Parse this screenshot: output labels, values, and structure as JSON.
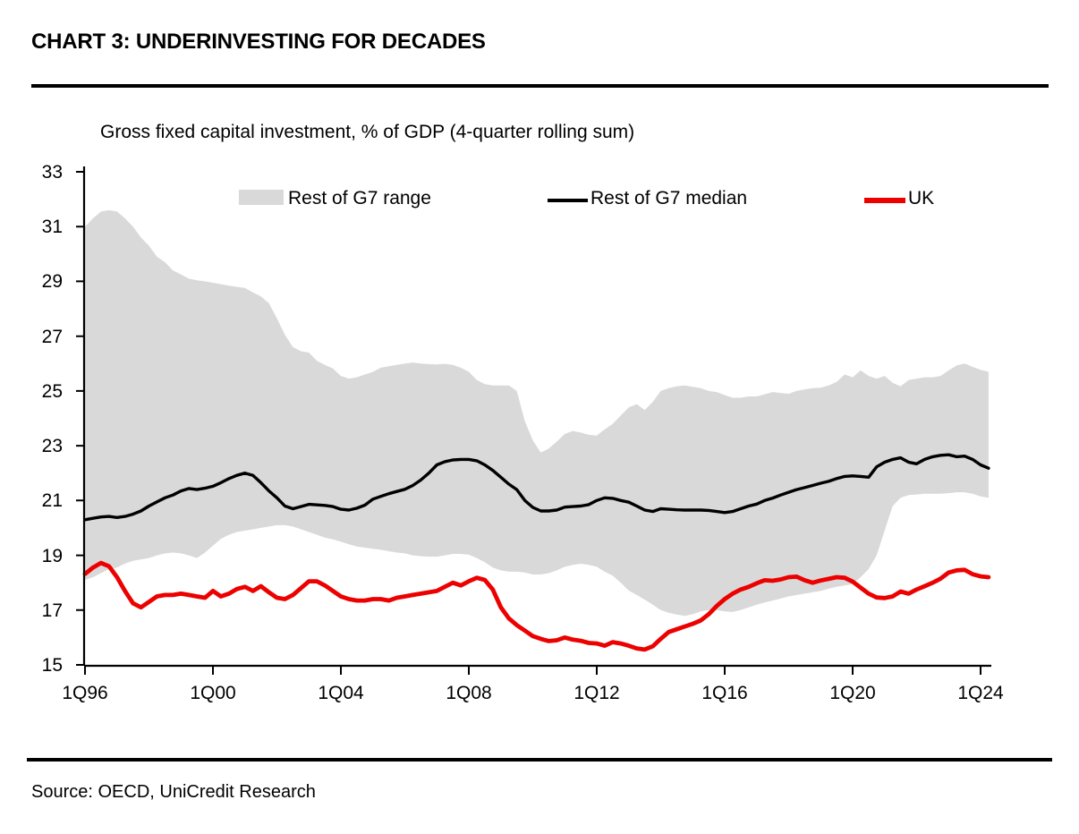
{
  "header": {
    "title": "CHART 3: UNDERINVESTING FOR DECADES"
  },
  "footer": {
    "source": "Source: OECD, UniCredit Research"
  },
  "chart_data": {
    "type": "area",
    "title": "Gross fixed capital investment, % of GDP (4-quarter rolling sum)",
    "xlabel": "",
    "ylabel": "",
    "ylim": [
      15,
      33
    ],
    "grid": false,
    "legend_position": "top",
    "x_frequency": "quarterly",
    "x_start": "1Q96",
    "x_end": "2Q24",
    "x_tick_labels": [
      "1Q96",
      "1Q00",
      "1Q04",
      "1Q08",
      "1Q12",
      "1Q16",
      "1Q20",
      "1Q24"
    ],
    "y_tick_labels": [
      "33",
      "31",
      "29",
      "27",
      "25",
      "23",
      "21",
      "19",
      "17",
      "15"
    ],
    "colors": {
      "band": "#d9d9d9",
      "median": "#000000",
      "uk": "#ec0000"
    },
    "legend": [
      {
        "label": "Rest of G7 range",
        "type": "band"
      },
      {
        "label": "Rest of G7 median",
        "type": "line"
      },
      {
        "label": "UK",
        "type": "line"
      }
    ],
    "series": [
      {
        "name": "Rest of G7 range (upper bound)",
        "values": [
          31.0,
          31.3,
          31.55,
          31.6,
          31.55,
          31.3,
          31.0,
          30.6,
          30.3,
          29.9,
          29.7,
          29.4,
          29.25,
          29.1,
          29.04,
          29.0,
          28.95,
          28.9,
          28.84,
          28.8,
          28.76,
          28.6,
          28.45,
          28.2,
          27.65,
          27.05,
          26.6,
          26.45,
          26.4,
          26.1,
          25.95,
          25.82,
          25.55,
          25.45,
          25.5,
          25.6,
          25.7,
          25.85,
          25.9,
          25.95,
          26.0,
          26.04,
          26.0,
          25.98,
          25.97,
          25.99,
          25.95,
          25.85,
          25.7,
          25.4,
          25.25,
          25.2,
          25.2,
          25.2,
          25.0,
          23.9,
          23.2,
          22.75,
          22.9,
          23.15,
          23.43,
          23.54,
          23.48,
          23.4,
          23.37,
          23.6,
          23.8,
          24.1,
          24.4,
          24.52,
          24.3,
          24.6,
          25.0,
          25.1,
          25.17,
          25.2,
          25.15,
          25.1,
          25.0,
          24.96,
          24.85,
          24.75,
          24.75,
          24.8,
          24.8,
          24.88,
          24.96,
          24.92,
          24.9,
          25.0,
          25.06,
          25.1,
          25.12,
          25.2,
          25.33,
          25.6,
          25.5,
          25.75,
          25.55,
          25.45,
          25.55,
          25.3,
          25.17,
          25.4,
          25.45,
          25.5,
          25.5,
          25.55,
          25.75,
          25.93,
          26.0,
          25.88,
          25.77,
          25.7
        ]
      },
      {
        "name": "Rest of G7 range (lower bound)",
        "values": [
          18.1,
          18.2,
          18.35,
          18.5,
          18.55,
          18.7,
          18.8,
          18.85,
          18.9,
          19.0,
          19.07,
          19.1,
          19.07,
          19.0,
          18.9,
          19.1,
          19.35,
          19.6,
          19.75,
          19.85,
          19.9,
          19.95,
          20.0,
          20.05,
          20.1,
          20.1,
          20.05,
          19.95,
          19.85,
          19.75,
          19.65,
          19.58,
          19.5,
          19.4,
          19.32,
          19.28,
          19.24,
          19.2,
          19.15,
          19.1,
          19.07,
          19.0,
          18.97,
          18.95,
          18.95,
          19.0,
          19.05,
          19.05,
          19.02,
          18.9,
          18.75,
          18.55,
          18.45,
          18.4,
          18.4,
          18.37,
          18.3,
          18.3,
          18.35,
          18.45,
          18.58,
          18.65,
          18.69,
          18.65,
          18.58,
          18.4,
          18.26,
          18.0,
          17.71,
          17.55,
          17.38,
          17.2,
          17.0,
          16.9,
          16.84,
          16.79,
          16.85,
          16.95,
          17.0,
          17.0,
          16.95,
          16.93,
          17.0,
          17.1,
          17.2,
          17.28,
          17.35,
          17.42,
          17.5,
          17.55,
          17.6,
          17.65,
          17.7,
          17.78,
          17.85,
          17.9,
          17.95,
          18.2,
          18.5,
          19.0,
          19.9,
          20.8,
          21.1,
          21.2,
          21.22,
          21.25,
          21.25,
          21.25,
          21.27,
          21.3,
          21.3,
          21.25,
          21.15,
          21.1
        ]
      },
      {
        "name": "Rest of G7 median",
        "values": [
          20.3,
          20.35,
          20.4,
          20.42,
          20.38,
          20.42,
          20.5,
          20.62,
          20.8,
          20.95,
          21.1,
          21.2,
          21.35,
          21.44,
          21.4,
          21.45,
          21.52,
          21.65,
          21.8,
          21.92,
          22.0,
          21.92,
          21.65,
          21.35,
          21.1,
          20.8,
          20.7,
          20.78,
          20.86,
          20.84,
          20.82,
          20.78,
          20.68,
          20.65,
          20.72,
          20.83,
          21.05,
          21.15,
          21.25,
          21.33,
          21.41,
          21.55,
          21.75,
          22.0,
          22.3,
          22.42,
          22.48,
          22.5,
          22.5,
          22.45,
          22.3,
          22.1,
          21.85,
          21.6,
          21.4,
          21.0,
          20.75,
          20.62,
          20.62,
          20.65,
          20.76,
          20.78,
          20.8,
          20.85,
          21.0,
          21.1,
          21.08,
          21.0,
          20.94,
          20.8,
          20.65,
          20.6,
          20.7,
          20.68,
          20.66,
          20.65,
          20.65,
          20.65,
          20.64,
          20.6,
          20.56,
          20.6,
          20.7,
          20.8,
          20.87,
          21.0,
          21.09,
          21.2,
          21.3,
          21.4,
          21.47,
          21.55,
          21.63,
          21.7,
          21.8,
          21.88,
          21.9,
          21.88,
          21.85,
          22.23,
          22.4,
          22.5,
          22.56,
          22.4,
          22.34,
          22.5,
          22.6,
          22.65,
          22.67,
          22.6,
          22.62,
          22.5,
          22.3,
          22.18
        ]
      },
      {
        "name": "UK",
        "values": [
          18.32,
          18.55,
          18.72,
          18.6,
          18.2,
          17.7,
          17.25,
          17.1,
          17.3,
          17.5,
          17.55,
          17.55,
          17.6,
          17.55,
          17.5,
          17.45,
          17.7,
          17.5,
          17.6,
          17.77,
          17.85,
          17.7,
          17.87,
          17.65,
          17.45,
          17.4,
          17.55,
          17.8,
          18.05,
          18.05,
          17.9,
          17.7,
          17.5,
          17.4,
          17.35,
          17.35,
          17.4,
          17.4,
          17.35,
          17.45,
          17.5,
          17.55,
          17.6,
          17.65,
          17.7,
          17.85,
          18.0,
          17.9,
          18.05,
          18.18,
          18.1,
          17.75,
          17.1,
          16.7,
          16.45,
          16.25,
          16.05,
          15.95,
          15.87,
          15.9,
          16.0,
          15.92,
          15.88,
          15.8,
          15.78,
          15.7,
          15.83,
          15.78,
          15.7,
          15.6,
          15.56,
          15.68,
          15.95,
          16.2,
          16.3,
          16.4,
          16.5,
          16.62,
          16.85,
          17.15,
          17.4,
          17.6,
          17.75,
          17.85,
          17.98,
          18.09,
          18.07,
          18.12,
          18.2,
          18.22,
          18.09,
          18.0,
          18.08,
          18.14,
          18.2,
          18.18,
          18.04,
          17.82,
          17.6,
          17.46,
          17.44,
          17.5,
          17.68,
          17.6,
          17.75,
          17.87,
          18.0,
          18.15,
          18.37,
          18.45,
          18.47,
          18.31,
          18.23,
          18.2
        ]
      }
    ]
  }
}
